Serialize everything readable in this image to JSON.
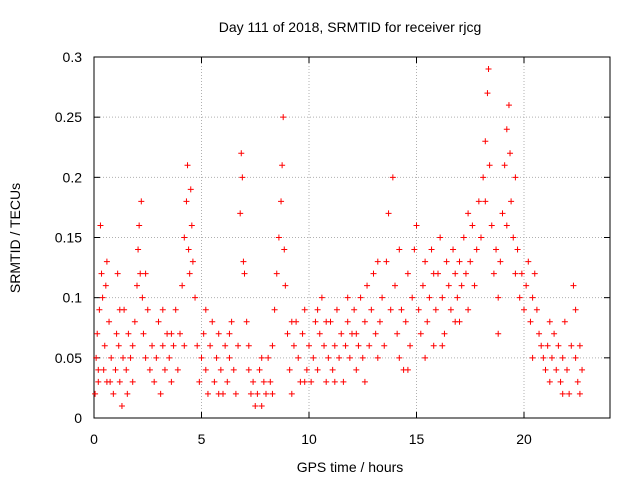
{
  "chart_data": {
    "type": "scatter",
    "title": "Day 111 of 2018, SRMTID for receiver rjcg",
    "xlabel": "GPS time / hours",
    "ylabel": "SRMTID / TECUs",
    "xlim": [
      0,
      24
    ],
    "ylim": [
      0,
      0.3
    ],
    "x_ticks": [
      0,
      5,
      10,
      15,
      20
    ],
    "x_tick_labels": [
      "0",
      "5",
      "10",
      "15",
      "20"
    ],
    "y_ticks": [
      0,
      0.05,
      0.1,
      0.15,
      0.2,
      0.25,
      0.3
    ],
    "y_tick_labels": [
      "0",
      "0.05",
      "0.1",
      "0.15",
      "0.2",
      "0.25",
      "0.3"
    ],
    "grid": true,
    "marker": "+",
    "series": [
      {
        "name": "SRMTID",
        "color": "#ff0000",
        "points": [
          [
            0.05,
            0.02
          ],
          [
            0.1,
            0.05
          ],
          [
            0.15,
            0.07
          ],
          [
            0.2,
            0.03
          ],
          [
            0.25,
            0.09
          ],
          [
            0.3,
            0.16
          ],
          [
            0.35,
            0.12
          ],
          [
            0.4,
            0.1
          ],
          [
            0.45,
            0.04
          ],
          [
            0.5,
            0.06
          ],
          [
            0.55,
            0.11
          ],
          [
            0.6,
            0.13
          ],
          [
            0.7,
            0.08
          ],
          [
            0.75,
            0.03
          ],
          [
            0.8,
            0.05
          ],
          [
            0.9,
            0.02
          ],
          [
            1.0,
            0.04
          ],
          [
            1.05,
            0.07
          ],
          [
            1.1,
            0.12
          ],
          [
            1.15,
            0.06
          ],
          [
            1.2,
            0.03
          ],
          [
            1.3,
            0.01
          ],
          [
            1.35,
            0.05
          ],
          [
            1.4,
            0.09
          ],
          [
            1.5,
            0.04
          ],
          [
            1.55,
            0.02
          ],
          [
            1.6,
            0.07
          ],
          [
            1.7,
            0.05
          ],
          [
            1.8,
            0.03
          ],
          [
            1.9,
            0.08
          ],
          [
            2.0,
            0.11
          ],
          [
            2.05,
            0.14
          ],
          [
            2.1,
            0.16
          ],
          [
            2.15,
            0.12
          ],
          [
            2.2,
            0.18
          ],
          [
            2.25,
            0.1
          ],
          [
            2.3,
            0.07
          ],
          [
            2.4,
            0.05
          ],
          [
            2.5,
            0.09
          ],
          [
            2.6,
            0.04
          ],
          [
            2.7,
            0.06
          ],
          [
            2.8,
            0.03
          ],
          [
            2.9,
            0.05
          ],
          [
            3.0,
            0.08
          ],
          [
            3.1,
            0.02
          ],
          [
            3.2,
            0.06
          ],
          [
            3.3,
            0.04
          ],
          [
            3.4,
            0.07
          ],
          [
            3.5,
            0.05
          ],
          [
            3.6,
            0.03
          ],
          [
            3.7,
            0.06
          ],
          [
            3.8,
            0.09
          ],
          [
            3.9,
            0.04
          ],
          [
            4.0,
            0.07
          ],
          [
            4.1,
            0.11
          ],
          [
            4.2,
            0.15
          ],
          [
            4.3,
            0.18
          ],
          [
            4.35,
            0.21
          ],
          [
            4.4,
            0.14
          ],
          [
            4.45,
            0.12
          ],
          [
            4.5,
            0.19
          ],
          [
            4.55,
            0.16
          ],
          [
            4.6,
            0.13
          ],
          [
            4.7,
            0.1
          ],
          [
            4.8,
            0.06
          ],
          [
            4.9,
            0.03
          ],
          [
            5.0,
            0.05
          ],
          [
            5.1,
            0.07
          ],
          [
            5.2,
            0.04
          ],
          [
            5.3,
            0.02
          ],
          [
            5.4,
            0.06
          ],
          [
            5.5,
            0.08
          ],
          [
            5.6,
            0.03
          ],
          [
            5.7,
            0.05
          ],
          [
            5.8,
            0.07
          ],
          [
            5.9,
            0.04
          ],
          [
            6.0,
            0.02
          ],
          [
            6.1,
            0.06
          ],
          [
            6.2,
            0.03
          ],
          [
            6.3,
            0.05
          ],
          [
            6.4,
            0.08
          ],
          [
            6.5,
            0.04
          ],
          [
            6.6,
            0.02
          ],
          [
            6.7,
            0.06
          ],
          [
            6.8,
            0.17
          ],
          [
            6.85,
            0.22
          ],
          [
            6.9,
            0.2
          ],
          [
            6.95,
            0.13
          ],
          [
            7.0,
            0.12
          ],
          [
            7.1,
            0.08
          ],
          [
            7.2,
            0.04
          ],
          [
            7.3,
            0.02
          ],
          [
            7.4,
            0.03
          ],
          [
            7.5,
            0.01
          ],
          [
            7.6,
            0.02
          ],
          [
            7.7,
            0.04
          ],
          [
            7.8,
            0.01
          ],
          [
            7.9,
            0.03
          ],
          [
            8.0,
            0.02
          ],
          [
            8.1,
            0.05
          ],
          [
            8.2,
            0.03
          ],
          [
            8.3,
            0.06
          ],
          [
            8.4,
            0.09
          ],
          [
            8.5,
            0.12
          ],
          [
            8.6,
            0.15
          ],
          [
            8.7,
            0.18
          ],
          [
            8.75,
            0.21
          ],
          [
            8.8,
            0.25
          ],
          [
            8.85,
            0.14
          ],
          [
            8.9,
            0.11
          ],
          [
            9.0,
            0.07
          ],
          [
            9.1,
            0.04
          ],
          [
            9.2,
            0.02
          ],
          [
            9.3,
            0.06
          ],
          [
            9.4,
            0.08
          ],
          [
            9.5,
            0.05
          ],
          [
            9.6,
            0.03
          ],
          [
            9.7,
            0.07
          ],
          [
            9.8,
            0.09
          ],
          [
            9.9,
            0.04
          ],
          [
            10.0,
            0.06
          ],
          [
            10.1,
            0.03
          ],
          [
            10.2,
            0.05
          ],
          [
            10.3,
            0.08
          ],
          [
            10.4,
            0.04
          ],
          [
            10.5,
            0.07
          ],
          [
            10.6,
            0.1
          ],
          [
            10.7,
            0.06
          ],
          [
            10.8,
            0.03
          ],
          [
            10.9,
            0.05
          ],
          [
            11.0,
            0.08
          ],
          [
            11.1,
            0.04
          ],
          [
            11.2,
            0.06
          ],
          [
            11.3,
            0.09
          ],
          [
            11.4,
            0.05
          ],
          [
            11.5,
            0.07
          ],
          [
            11.6,
            0.03
          ],
          [
            11.7,
            0.06
          ],
          [
            11.8,
            0.08
          ],
          [
            11.9,
            0.05
          ],
          [
            12.0,
            0.07
          ],
          [
            12.1,
            0.09
          ],
          [
            12.2,
            0.04
          ],
          [
            12.3,
            0.06
          ],
          [
            12.4,
            0.1
          ],
          [
            12.5,
            0.05
          ],
          [
            12.6,
            0.08
          ],
          [
            12.7,
            0.11
          ],
          [
            12.8,
            0.06
          ],
          [
            12.9,
            0.09
          ],
          [
            13.0,
            0.12
          ],
          [
            13.1,
            0.07
          ],
          [
            13.2,
            0.05
          ],
          [
            13.3,
            0.08
          ],
          [
            13.4,
            0.1
          ],
          [
            13.5,
            0.06
          ],
          [
            13.6,
            0.13
          ],
          [
            13.7,
            0.17
          ],
          [
            13.8,
            0.09
          ],
          [
            13.9,
            0.2
          ],
          [
            14.0,
            0.11
          ],
          [
            14.1,
            0.07
          ],
          [
            14.2,
            0.14
          ],
          [
            14.3,
            0.09
          ],
          [
            14.4,
            0.04
          ],
          [
            14.5,
            0.08
          ],
          [
            14.6,
            0.12
          ],
          [
            14.7,
            0.06
          ],
          [
            14.8,
            0.1
          ],
          [
            14.9,
            0.14
          ],
          [
            15.0,
            0.16
          ],
          [
            15.1,
            0.09
          ],
          [
            15.2,
            0.07
          ],
          [
            15.3,
            0.11
          ],
          [
            15.4,
            0.13
          ],
          [
            15.5,
            0.08
          ],
          [
            15.6,
            0.1
          ],
          [
            15.7,
            0.14
          ],
          [
            15.8,
            0.06
          ],
          [
            15.9,
            0.09
          ],
          [
            16.0,
            0.12
          ],
          [
            16.1,
            0.15
          ],
          [
            16.2,
            0.1
          ],
          [
            16.3,
            0.07
          ],
          [
            16.4,
            0.13
          ],
          [
            16.5,
            0.11
          ],
          [
            16.6,
            0.09
          ],
          [
            16.7,
            0.14
          ],
          [
            16.8,
            0.12
          ],
          [
            16.9,
            0.1
          ],
          [
            17.0,
            0.08
          ],
          [
            17.1,
            0.11
          ],
          [
            17.2,
            0.15
          ],
          [
            17.3,
            0.12
          ],
          [
            17.4,
            0.09
          ],
          [
            17.5,
            0.13
          ],
          [
            17.6,
            0.16
          ],
          [
            17.7,
            0.11
          ],
          [
            17.8,
            0.14
          ],
          [
            17.9,
            0.18
          ],
          [
            18.0,
            0.15
          ],
          [
            18.1,
            0.2
          ],
          [
            18.2,
            0.23
          ],
          [
            18.3,
            0.27
          ],
          [
            18.35,
            0.29
          ],
          [
            18.4,
            0.21
          ],
          [
            18.5,
            0.16
          ],
          [
            18.6,
            0.12
          ],
          [
            18.7,
            0.14
          ],
          [
            18.8,
            0.1
          ],
          [
            18.9,
            0.13
          ],
          [
            19.0,
            0.17
          ],
          [
            19.1,
            0.21
          ],
          [
            19.2,
            0.24
          ],
          [
            19.3,
            0.26
          ],
          [
            19.35,
            0.22
          ],
          [
            19.4,
            0.18
          ],
          [
            19.5,
            0.15
          ],
          [
            19.6,
            0.12
          ],
          [
            19.7,
            0.14
          ],
          [
            19.8,
            0.1
          ],
          [
            19.9,
            0.12
          ],
          [
            20.0,
            0.09
          ],
          [
            20.1,
            0.11
          ],
          [
            20.2,
            0.13
          ],
          [
            20.3,
            0.08
          ],
          [
            20.4,
            0.1
          ],
          [
            20.5,
            0.12
          ],
          [
            20.6,
            0.09
          ],
          [
            20.7,
            0.07
          ],
          [
            20.8,
            0.06
          ],
          [
            20.9,
            0.05
          ],
          [
            21.0,
            0.04
          ],
          [
            21.1,
            0.06
          ],
          [
            21.2,
            0.03
          ],
          [
            21.3,
            0.05
          ],
          [
            21.4,
            0.07
          ],
          [
            21.5,
            0.04
          ],
          [
            21.6,
            0.06
          ],
          [
            21.7,
            0.03
          ],
          [
            21.8,
            0.05
          ],
          [
            21.9,
            0.08
          ],
          [
            22.0,
            0.04
          ],
          [
            22.1,
            0.02
          ],
          [
            22.2,
            0.06
          ],
          [
            22.3,
            0.11
          ],
          [
            22.4,
            0.05
          ],
          [
            22.5,
            0.03
          ],
          [
            22.6,
            0.02
          ],
          [
            22.7,
            0.04
          ],
          [
            0.2,
            0.04
          ],
          [
            0.6,
            0.03
          ],
          [
            1.2,
            0.09
          ],
          [
            1.8,
            0.06
          ],
          [
            2.4,
            0.12
          ],
          [
            3.2,
            0.09
          ],
          [
            3.6,
            0.07
          ],
          [
            4.2,
            0.06
          ],
          [
            5.2,
            0.09
          ],
          [
            5.8,
            0.02
          ],
          [
            6.3,
            0.07
          ],
          [
            7.2,
            0.06
          ],
          [
            7.8,
            0.05
          ],
          [
            8.3,
            0.02
          ],
          [
            9.2,
            0.08
          ],
          [
            9.8,
            0.03
          ],
          [
            10.4,
            0.09
          ],
          [
            11.2,
            0.03
          ],
          [
            11.8,
            0.1
          ],
          [
            12.6,
            0.03
          ],
          [
            13.2,
            0.13
          ],
          [
            14.6,
            0.04
          ],
          [
            15.4,
            0.05
          ],
          [
            16.2,
            0.06
          ],
          [
            16.8,
            0.08
          ],
          [
            17.4,
            0.17
          ],
          [
            18.2,
            0.18
          ],
          [
            18.8,
            0.07
          ],
          [
            19.6,
            0.2
          ],
          [
            20.4,
            0.05
          ],
          [
            21.2,
            0.08
          ],
          [
            21.8,
            0.02
          ],
          [
            22.4,
            0.09
          ],
          [
            22.6,
            0.06
          ],
          [
            10.8,
            0.08
          ],
          [
            12.2,
            0.07
          ],
          [
            14.2,
            0.05
          ],
          [
            15.8,
            0.12
          ],
          [
            17.0,
            0.13
          ],
          [
            19.2,
            0.16
          ]
        ]
      }
    ]
  }
}
